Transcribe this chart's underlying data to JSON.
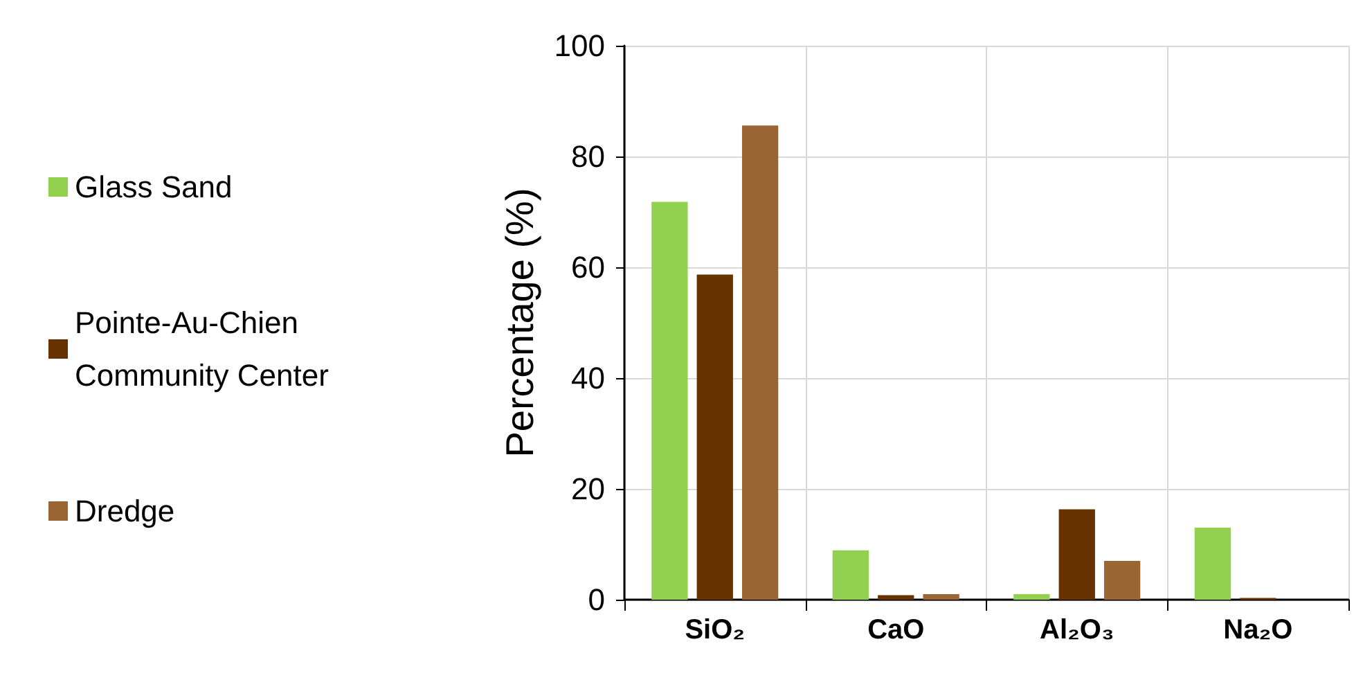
{
  "chart_data": {
    "type": "bar",
    "ylabel": "Percentage (%)",
    "categories": [
      "SiO₂",
      "CaO",
      "Al₂O₃",
      "Na₂O"
    ],
    "series": [
      {
        "name": "Glass Sand",
        "color": "#92d050",
        "values": [
          71.8,
          8.9,
          1.0,
          13.0
        ]
      },
      {
        "name": "Pointe-Au-Chien Community Center",
        "color": "#663300",
        "values": [
          58.7,
          0.8,
          16.3,
          0.3
        ]
      },
      {
        "name": "Dredge",
        "color": "#996633",
        "values": [
          85.6,
          1.0,
          7.0,
          0
        ]
      }
    ],
    "ylim": [
      0,
      100
    ],
    "yticks": [
      0,
      20,
      40,
      60,
      80,
      100
    ],
    "grid": true,
    "legend": "left"
  }
}
